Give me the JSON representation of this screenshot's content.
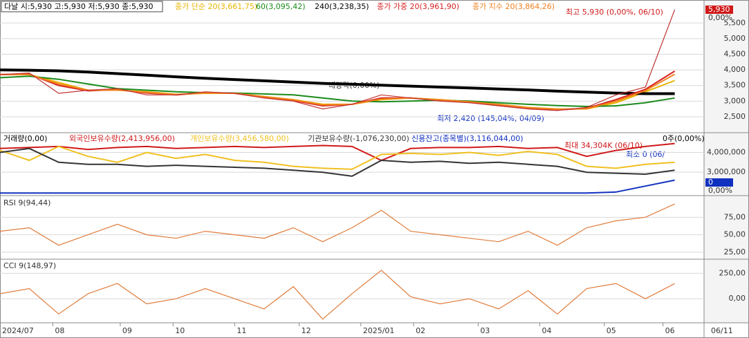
{
  "chart_data": [
    {
      "type": "line",
      "title": "다날 시:5,930 고:5,930 저:5,930 종:5,930",
      "x": [
        0,
        10,
        20,
        30,
        40,
        50,
        60,
        70,
        80,
        90,
        100,
        110,
        120,
        130,
        140,
        150,
        160,
        170,
        180,
        190,
        200,
        210,
        220,
        230
      ],
      "values": [
        3850,
        3900,
        3250,
        3350,
        3400,
        3200,
        3200,
        3300,
        3250,
        3100,
        3000,
        2750,
        2900,
        3200,
        3100,
        3000,
        2950,
        2850,
        2750,
        2700,
        2800,
        3200,
        3450,
        5930
      ],
      "color": "#c03030",
      "series": [
        {
          "name": "종가 단순 20(3,661,75)",
          "color": "#e8b400",
          "values": [
            3850,
            3850,
            3600,
            3350,
            3350,
            3300,
            3220,
            3250,
            3250,
            3150,
            3050,
            2900,
            2900,
            3050,
            3100,
            3050,
            2980,
            2900,
            2800,
            2750,
            2750,
            2950,
            3300,
            3660
          ]
        },
        {
          "name": "60(3,095,42)",
          "color": "#1a8a1a",
          "values": [
            3750,
            3800,
            3700,
            3550,
            3400,
            3350,
            3300,
            3270,
            3260,
            3230,
            3200,
            3100,
            3000,
            2980,
            3000,
            3030,
            3000,
            2950,
            2900,
            2860,
            2830,
            2850,
            2950,
            3100
          ]
        },
        {
          "name": "240(3,238,35)",
          "color": "#000000",
          "values": [
            4000,
            3990,
            3970,
            3930,
            3880,
            3830,
            3780,
            3730,
            3690,
            3650,
            3610,
            3570,
            3540,
            3510,
            3480,
            3450,
            3420,
            3390,
            3360,
            3320,
            3290,
            3260,
            3240,
            3240
          ]
        },
        {
          "name": "종가 가중 20(3,961,90)",
          "color": "#d62020",
          "values": [
            3850,
            3860,
            3500,
            3330,
            3370,
            3260,
            3200,
            3270,
            3250,
            3120,
            3020,
            2850,
            2900,
            3100,
            3100,
            3030,
            2970,
            2880,
            2780,
            2720,
            2770,
            3050,
            3380,
            3960
          ]
        },
        {
          "name": "종가 지수 20(3,864,26)",
          "color": "#f08020",
          "values": [
            3850,
            3850,
            3550,
            3350,
            3360,
            3280,
            3210,
            3260,
            3250,
            3140,
            3040,
            2880,
            2900,
            3070,
            3100,
            3040,
            2980,
            2890,
            2790,
            2740,
            2760,
            3000,
            3340,
            3860
          ]
        }
      ],
      "annotations": [
        "최고 5,930 (0,00%, 06/10)",
        "최저 2,420 (145,04%, 04/09)",
        "배당락(0,00%)"
      ],
      "last_price": "5,930",
      "last_change": "0,00%",
      "xlim": [
        0,
        240
      ],
      "xticks": [
        {
          "value": 0,
          "label": "2024/07"
        },
        {
          "value": 18,
          "label": "08"
        },
        {
          "value": 41,
          "label": "09"
        },
        {
          "value": 59,
          "label": "10"
        },
        {
          "value": 80,
          "label": "11"
        },
        {
          "value": 102,
          "label": "12"
        },
        {
          "value": 123,
          "label": "2025/01"
        },
        {
          "value": 141,
          "label": "02"
        },
        {
          "value": 163,
          "label": "03"
        },
        {
          "value": 184,
          "label": "04"
        },
        {
          "value": 206,
          "label": "05"
        },
        {
          "value": 226,
          "label": "06"
        }
      ],
      "last_date": "06/11",
      "ylim": [
        1990,
        6170
      ],
      "yticks": [
        {
          "value": 2500,
          "label": "2,500"
        },
        {
          "value": 3000,
          "label": "3,000"
        },
        {
          "value": 3500,
          "label": "3,500"
        },
        {
          "value": 4000,
          "label": "4,000"
        },
        {
          "value": 4500,
          "label": "4,500"
        },
        {
          "value": 5000,
          "label": "5,000"
        },
        {
          "value": 5500,
          "label": "5,500"
        }
      ]
    },
    {
      "type": "line",
      "title": "거래량(0,00)",
      "series": [
        {
          "name": "외국인보유수량(2,413,956,00)",
          "color": "#d01818",
          "values": [
            4200000,
            4250000,
            4300000,
            4150000,
            4250000,
            4300000,
            4200000,
            4250000,
            4300000,
            4250000,
            4300000,
            4350000,
            4300000,
            3600000,
            4200000,
            4250000,
            4250000,
            4300000,
            4200000,
            4250000,
            3800000,
            4100000,
            4300000,
            4450000
          ]
        },
        {
          "name": "개인보유수량(3,456,580,00)",
          "color": "#f0c020",
          "values": [
            4100000,
            3600000,
            4300000,
            3800000,
            3500000,
            4000000,
            3700000,
            3900000,
            3600000,
            3500000,
            3300000,
            3200000,
            3150000,
            3900000,
            3950000,
            3900000,
            4000000,
            3850000,
            4050000,
            3900000,
            3300000,
            3200000,
            3400000,
            3500000
          ]
        },
        {
          "name": "기관보유수량(-1,076,230,00)",
          "color": "#333333",
          "values": [
            4000000,
            4200000,
            3500000,
            3400000,
            3400000,
            3300000,
            3350000,
            3300000,
            3250000,
            3200000,
            3100000,
            3000000,
            2800000,
            3600000,
            3500000,
            3550000,
            3450000,
            3500000,
            3400000,
            3300000,
            3000000,
            2950000,
            2900000,
            3100000
          ]
        },
        {
          "name": "신용잔고(종목별)(3,116,044,00)",
          "color": "#1030c0",
          "values": [
            1950000,
            1950000,
            1950000,
            1950000,
            1950000,
            1950000,
            1950000,
            1950000,
            1950000,
            1950000,
            1950000,
            1950000,
            1950000,
            1950000,
            1950000,
            1950000,
            1950000,
            1950000,
            1950000,
            1950000,
            1950000,
            2000000,
            2300000,
            2600000
          ]
        }
      ],
      "annotations": [
        "최대 34,304K (06/10)",
        "최소 0 (06/",
        "0주(0,00%)"
      ],
      "right_labels": [
        "0",
        "0,00%"
      ],
      "ylim": [
        1820000,
        4960000
      ],
      "yticks": [
        {
          "value": 3000000,
          "label": "3,000,000"
        },
        {
          "value": 4000000,
          "label": "4,000,000"
        }
      ]
    },
    {
      "type": "line",
      "title": "RSI 9(94,44)",
      "color": "#e07b39",
      "values": [
        55,
        60,
        35,
        50,
        65,
        50,
        45,
        55,
        50,
        45,
        60,
        40,
        60,
        85,
        55,
        50,
        45,
        40,
        55,
        35,
        60,
        70,
        75,
        94
      ],
      "ylim": [
        15,
        104
      ],
      "yticks": [
        {
          "value": 25,
          "label": "25,00"
        },
        {
          "value": 50,
          "label": "50,00"
        },
        {
          "value": 75,
          "label": "75,00"
        }
      ]
    },
    {
      "type": "line",
      "title": "CCI 9(148,97)",
      "color": "#e07b39",
      "values": [
        50,
        100,
        -150,
        50,
        150,
        -50,
        0,
        100,
        0,
        -100,
        120,
        -200,
        50,
        280,
        20,
        -50,
        0,
        -100,
        80,
        -150,
        100,
        150,
        0,
        149
      ],
      "ylim": [
        -236,
        375
      ],
      "yticks": [
        {
          "value": 0,
          "label": "0,00"
        },
        {
          "value": 250,
          "label": "250,00"
        }
      ]
    }
  ]
}
